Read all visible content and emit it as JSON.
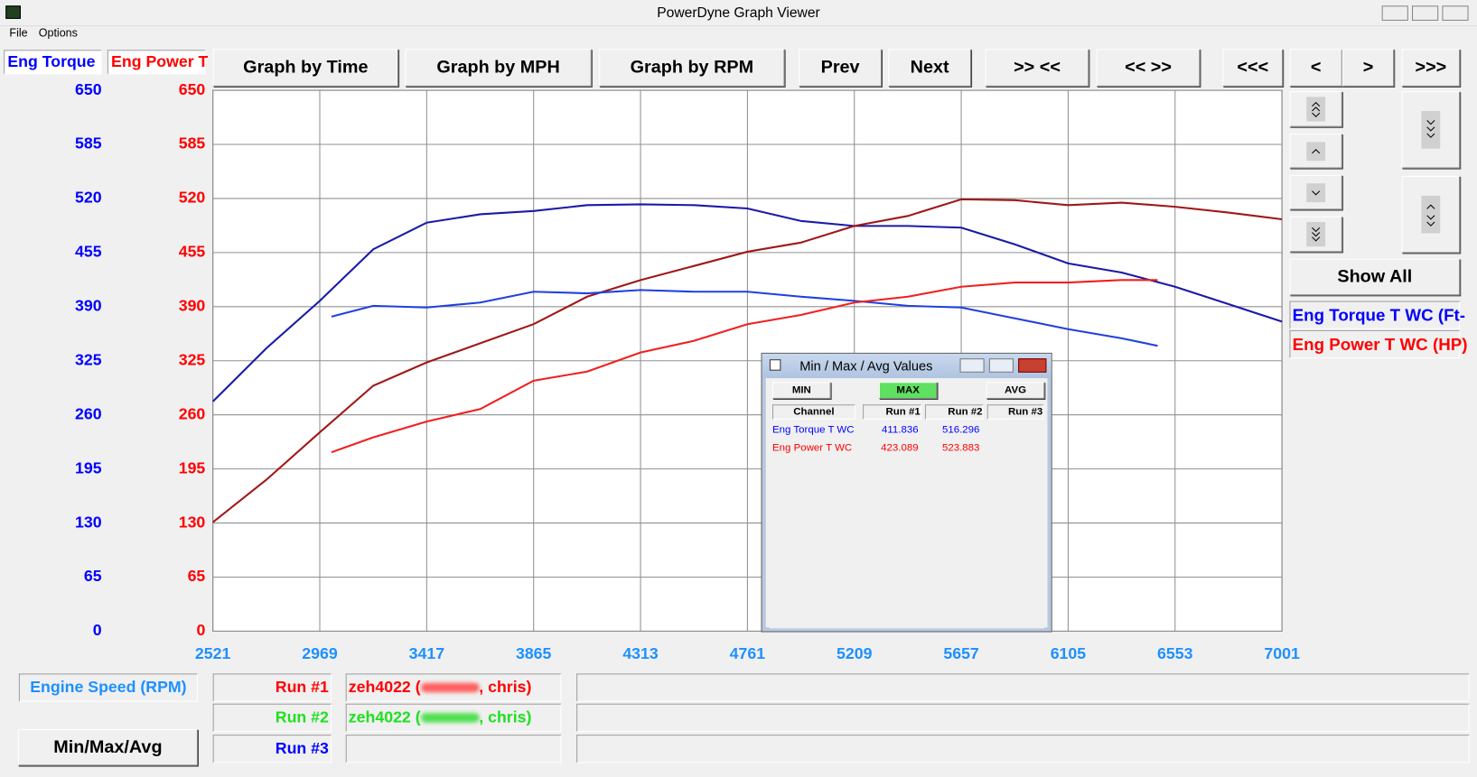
{
  "window": {
    "title": "PowerDyne Graph Viewer",
    "menu": [
      "File",
      "Options"
    ]
  },
  "toolbar": {
    "buttons": [
      "Graph by Time",
      "Graph by MPH",
      "Graph by RPM",
      "Prev",
      "Next",
      ">> <<",
      "<< >>",
      "<<<",
      "<",
      ">",
      ">>>"
    ]
  },
  "side_panel": {
    "show_all": "Show All",
    "legend": [
      "Eng Torque T WC (Ft-",
      "Eng Power T WC (HP)"
    ]
  },
  "chart_data": {
    "type": "line",
    "y_label": "Eng Torque",
    "y2_label": "Eng Power T",
    "x_label": "Engine Speed (RPM)",
    "xlim": [
      2521,
      7001
    ],
    "xticks": [
      2521,
      2969,
      3417,
      3865,
      4313,
      4761,
      5209,
      5657,
      6105,
      6553,
      7001
    ],
    "ylim": [
      0,
      650
    ],
    "yticks": [
      0,
      65,
      130,
      195,
      260,
      325,
      390,
      455,
      520,
      585,
      650
    ],
    "y2lim": [
      0,
      650
    ],
    "y2ticks": [
      0,
      65,
      130,
      195,
      260,
      325,
      390,
      455,
      520,
      585,
      650
    ],
    "grid": true,
    "y_color": "#0000ff",
    "y2_color": "#ff0000",
    "series": [
      {
        "color": "#1a1aa8",
        "x": [
          2521,
          2745,
          2969,
          3193,
          3417,
          3641,
          3865,
          4089,
          4313,
          4537,
          4761,
          4985,
          5209,
          5433,
          5657,
          5881,
          6105,
          6329,
          6553,
          6777,
          7001
        ],
        "values": [
          276,
          340,
          397,
          459,
          491,
          501,
          505,
          512,
          513,
          512,
          508,
          493,
          487,
          487,
          485,
          465,
          442,
          431,
          414,
          393,
          372
        ]
      },
      {
        "color": "#a01818",
        "axis": "y2",
        "x": [
          2521,
          2745,
          2969,
          3193,
          3417,
          3641,
          3865,
          4089,
          4313,
          4537,
          4761,
          4985,
          5209,
          5433,
          5657,
          5881,
          6105,
          6329,
          6553,
          6777,
          7001
        ],
        "values": [
          131,
          182,
          239,
          295,
          323,
          346,
          369,
          402,
          422,
          439,
          456,
          467,
          487,
          499,
          519,
          518,
          512,
          515,
          510,
          503,
          495
        ]
      },
      {
        "color": "#2040e0",
        "x": [
          3018,
          3193,
          3417,
          3641,
          3865,
          4089,
          4313,
          4537,
          4761,
          4985,
          5209,
          5433,
          5657,
          5881,
          6105,
          6329,
          6480
        ],
        "values": [
          378,
          391,
          389,
          395,
          408,
          406,
          410,
          408,
          408,
          402,
          397,
          391,
          389,
          376,
          363,
          352,
          343
        ]
      },
      {
        "color": "#f02020",
        "axis": "y2",
        "x": [
          3018,
          3193,
          3417,
          3641,
          3865,
          4089,
          4313,
          4537,
          4761,
          4985,
          5209,
          5433,
          5657,
          5881,
          6105,
          6329,
          6480
        ],
        "values": [
          215,
          233,
          252,
          267,
          301,
          312,
          335,
          349,
          369,
          380,
          395,
          402,
          414,
          419,
          419,
          422,
          422
        ]
      }
    ]
  },
  "bottom": {
    "min_max_avg": "Min/Max/Avg",
    "runs": [
      {
        "label": "Run #1",
        "file": "zeh4022 (",
        "user": ", chris)"
      },
      {
        "label": "Run #2",
        "file": "zeh4022 (",
        "user": ", chris)"
      },
      {
        "label": "Run #3"
      }
    ]
  },
  "dialog": {
    "title": "Min / Max / Avg Values",
    "buttons": [
      "MIN",
      "MAX",
      "AVG"
    ],
    "headers": [
      "Channel",
      "Run #1",
      "Run #2",
      "Run #3"
    ],
    "rows": [
      [
        "Eng Torque T WC",
        "411.836",
        "516.296"
      ],
      [
        "Eng Power T WC",
        "423.089",
        "523.883"
      ]
    ]
  }
}
